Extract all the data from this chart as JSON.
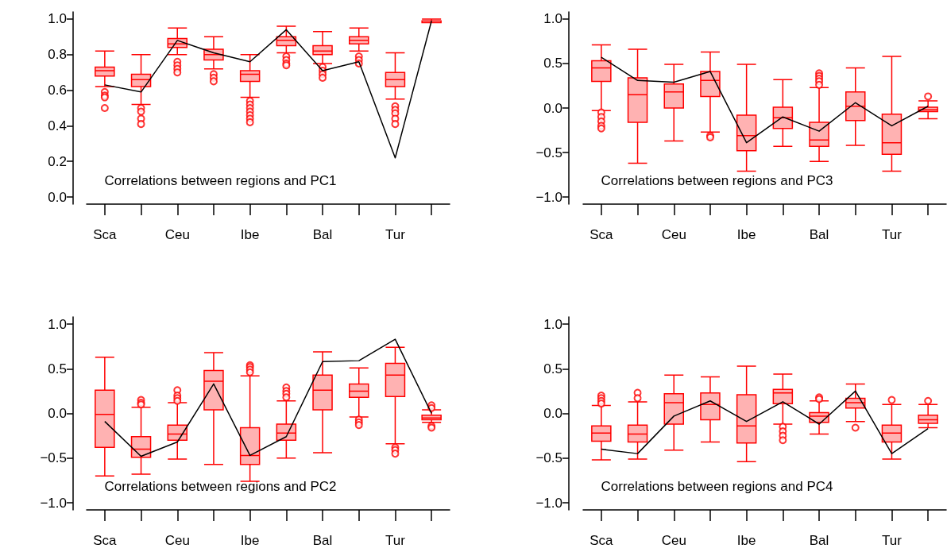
{
  "chart_data": [
    {
      "type": "box",
      "categories": [
        "Sca",
        null,
        "Ceu",
        null,
        "Ibe",
        null,
        "Bal",
        null,
        "Tur",
        null
      ],
      "ylim": [
        -0.04,
        1.04
      ],
      "yticks": [
        {
          "value": 0,
          "label": "0.0"
        },
        0.2,
        0.4,
        0.6,
        0.8,
        {
          "value": 1,
          "label": "1.0"
        }
      ],
      "annotations": [
        "Correlations between regions and PC1"
      ],
      "series": [
        {
          "type": "box",
          "color": "#ff0000",
          "boxes": [
            {
              "low": 0.62,
              "q1": 0.68,
              "median": 0.71,
              "q3": 0.73,
              "high": 0.82,
              "outliers": [
                0.59,
                0.57,
                0.56,
                0.5
              ]
            },
            {
              "low": 0.52,
              "q1": 0.62,
              "median": 0.66,
              "q3": 0.69,
              "high": 0.8,
              "outliers": [
                0.5,
                0.48,
                0.44,
                0.41
              ]
            },
            {
              "low": 0.8,
              "q1": 0.84,
              "median": 0.86,
              "q3": 0.89,
              "high": 0.95,
              "outliers": [
                0.76,
                0.74,
                0.72,
                0.7
              ]
            },
            {
              "low": 0.72,
              "q1": 0.77,
              "median": 0.8,
              "q3": 0.83,
              "high": 0.9,
              "outliers": [
                0.69,
                0.67,
                0.65
              ]
            },
            {
              "low": 0.56,
              "q1": 0.65,
              "median": 0.69,
              "q3": 0.71,
              "high": 0.8,
              "outliers": [
                0.54,
                0.52,
                0.5,
                0.48,
                0.46,
                0.44,
                0.42
              ]
            },
            {
              "low": 0.81,
              "q1": 0.85,
              "median": 0.88,
              "q3": 0.9,
              "high": 0.96,
              "outliers": [
                0.79,
                0.77,
                0.75,
                0.74
              ]
            },
            {
              "low": 0.75,
              "q1": 0.8,
              "median": 0.82,
              "q3": 0.85,
              "high": 0.93,
              "outliers": [
                0.73,
                0.71,
                0.69,
                0.67
              ]
            },
            {
              "low": 0.82,
              "q1": 0.86,
              "median": 0.88,
              "q3": 0.9,
              "high": 0.95,
              "outliers": [
                0.79,
                0.77,
                0.75
              ]
            },
            {
              "low": 0.55,
              "q1": 0.62,
              "median": 0.66,
              "q3": 0.7,
              "high": 0.81,
              "outliers": [
                0.51,
                0.49,
                0.47,
                0.44,
                0.41
              ]
            },
            {
              "low": 0.98,
              "q1": 0.98,
              "median": 0.99,
              "q3": 0.99,
              "high": 1.0
            }
          ]
        },
        {
          "type": "line",
          "color": "#000000",
          "values": [
            0.63,
            0.59,
            0.88,
            0.81,
            0.76,
            0.94,
            0.71,
            0.76,
            0.22,
            0.99
          ]
        }
      ]
    },
    {
      "type": "box",
      "categories": [
        "Sca",
        null,
        "Ceu",
        null,
        "Ibe",
        null,
        "Bal",
        null,
        "Tur",
        null
      ],
      "ylim": [
        -1.08,
        1.08
      ],
      "yticks": [
        {
          "value": -1,
          "label": "−1.0"
        },
        {
          "value": -0.5,
          "label": "−0.5"
        },
        {
          "value": 0,
          "label": "0.0"
        },
        0.5,
        {
          "value": 1,
          "label": "1.0"
        }
      ],
      "annotations": [
        "Correlations between regions and PC3"
      ],
      "series": [
        {
          "type": "box",
          "color": "#ff0000",
          "boxes": [
            {
              "low": -0.03,
              "q1": 0.3,
              "median": 0.45,
              "q3": 0.53,
              "high": 0.71,
              "outliers": [
                -0.05,
                -0.1,
                -0.15,
                -0.2,
                -0.23
              ]
            },
            {
              "low": -0.62,
              "q1": -0.16,
              "median": 0.15,
              "q3": 0.34,
              "high": 0.66
            },
            {
              "low": -0.37,
              "q1": 0.0,
              "median": 0.18,
              "q3": 0.27,
              "high": 0.49
            },
            {
              "low": -0.27,
              "q1": 0.13,
              "median": 0.31,
              "q3": 0.41,
              "high": 0.63,
              "outliers": [
                -0.31,
                -0.33
              ]
            },
            {
              "low": -0.71,
              "q1": -0.48,
              "median": -0.31,
              "q3": -0.08,
              "high": 0.49
            },
            {
              "low": -0.43,
              "q1": -0.23,
              "median": -0.11,
              "q3": 0.01,
              "high": 0.32
            },
            {
              "low": -0.6,
              "q1": -0.43,
              "median": -0.36,
              "q3": -0.16,
              "high": 0.23,
              "outliers": [
                0.39,
                0.36,
                0.33,
                0.3,
                0.26
              ]
            },
            {
              "low": -0.42,
              "q1": -0.14,
              "median": 0.02,
              "q3": 0.18,
              "high": 0.45
            },
            {
              "low": -0.71,
              "q1": -0.52,
              "median": -0.39,
              "q3": -0.07,
              "high": 0.58
            },
            {
              "low": -0.12,
              "q1": -0.04,
              "median": -0.02,
              "q3": 0.01,
              "high": 0.08,
              "outliers": [
                0.13
              ]
            }
          ]
        },
        {
          "type": "line",
          "color": "#000000",
          "values": [
            0.57,
            0.31,
            0.29,
            0.41,
            -0.39,
            -0.1,
            -0.26,
            0.06,
            -0.2,
            0.02
          ]
        }
      ]
    },
    {
      "type": "box",
      "categories": [
        "Sca",
        null,
        "Ceu",
        null,
        "Ibe",
        null,
        "Bal",
        null,
        "Tur",
        null
      ],
      "ylim": [
        -1.08,
        1.08
      ],
      "yticks": [
        {
          "value": -1,
          "label": "−1.0"
        },
        {
          "value": -0.5,
          "label": "−0.5"
        },
        {
          "value": 0,
          "label": "0.0"
        },
        0.5,
        {
          "value": 1,
          "label": "1.0"
        }
      ],
      "annotations": [
        "Correlations between regions and PC2"
      ],
      "series": [
        {
          "type": "box",
          "color": "#ff0000",
          "boxes": [
            {
              "low": -0.7,
              "q1": -0.38,
              "median": -0.01,
              "q3": 0.26,
              "high": 0.63
            },
            {
              "low": -0.68,
              "q1": -0.49,
              "median": -0.4,
              "q3": -0.26,
              "high": 0.07,
              "outliers": [
                0.15,
                0.12,
                0.1
              ]
            },
            {
              "low": -0.51,
              "q1": -0.3,
              "median": -0.23,
              "q3": -0.13,
              "high": 0.12,
              "outliers": [
                0.26,
                0.2,
                0.17,
                0.14
              ]
            },
            {
              "low": -0.57,
              "q1": 0.04,
              "median": 0.36,
              "q3": 0.48,
              "high": 0.68
            },
            {
              "low": -0.76,
              "q1": -0.57,
              "median": -0.47,
              "q3": -0.16,
              "high": 0.42,
              "outliers": [
                0.54,
                0.52,
                0.49,
                0.46
              ]
            },
            {
              "low": -0.5,
              "q1": -0.3,
              "median": -0.22,
              "q3": -0.12,
              "high": 0.14,
              "outliers": [
                0.29,
                0.25,
                0.22,
                0.18
              ]
            },
            {
              "low": -0.44,
              "q1": 0.04,
              "median": 0.26,
              "q3": 0.43,
              "high": 0.69
            },
            {
              "low": -0.04,
              "q1": 0.18,
              "median": 0.25,
              "q3": 0.33,
              "high": 0.51,
              "outliers": [
                -0.07,
                -0.1,
                -0.13
              ]
            },
            {
              "low": -0.34,
              "q1": 0.19,
              "median": 0.43,
              "q3": 0.56,
              "high": 0.74,
              "outliers": [
                -0.38,
                -0.41,
                -0.45
              ]
            },
            {
              "low": -0.1,
              "q1": -0.07,
              "median": -0.05,
              "q3": -0.02,
              "high": 0.04,
              "outliers": [
                0.09,
                0.06,
                -0.14,
                -0.16
              ]
            }
          ]
        },
        {
          "type": "line",
          "color": "#000000",
          "values": [
            -0.09,
            -0.48,
            -0.32,
            0.33,
            -0.47,
            -0.26,
            0.58,
            0.59,
            0.83,
            0.0
          ]
        }
      ]
    },
    {
      "type": "box",
      "categories": [
        "Sca",
        null,
        "Ceu",
        null,
        "Ibe",
        null,
        "Bal",
        null,
        "Tur",
        null
      ],
      "ylim": [
        -1.08,
        1.08
      ],
      "yticks": [
        {
          "value": -1,
          "label": "−1.0"
        },
        {
          "value": -0.5,
          "label": "−0.5"
        },
        {
          "value": 0,
          "label": "0.0"
        },
        0.5,
        {
          "value": 1,
          "label": "1.0"
        }
      ],
      "annotations": [
        "Correlations between regions and PC4"
      ],
      "series": [
        {
          "type": "box",
          "color": "#ff0000",
          "boxes": [
            {
              "low": -0.52,
              "q1": -0.31,
              "median": -0.22,
              "q3": -0.14,
              "high": 0.09,
              "outliers": [
                0.2,
                0.17,
                0.14,
                0.11
              ]
            },
            {
              "low": -0.51,
              "q1": -0.32,
              "median": -0.23,
              "q3": -0.13,
              "high": 0.13,
              "outliers": [
                0.23,
                0.17
              ]
            },
            {
              "low": -0.41,
              "q1": -0.12,
              "median": 0.12,
              "q3": 0.22,
              "high": 0.43
            },
            {
              "low": -0.32,
              "q1": -0.07,
              "median": 0.1,
              "q3": 0.23,
              "high": 0.41
            },
            {
              "low": -0.54,
              "q1": -0.33,
              "median": -0.14,
              "q3": 0.21,
              "high": 0.53
            },
            {
              "low": -0.12,
              "q1": 0.11,
              "median": 0.23,
              "q3": 0.27,
              "high": 0.44,
              "outliers": [
                -0.15,
                -0.2,
                -0.25,
                -0.3
              ]
            },
            {
              "low": -0.23,
              "q1": -0.1,
              "median": -0.03,
              "q3": 0.01,
              "high": 0.14,
              "outliers": [
                0.18,
                0.16
              ]
            },
            {
              "low": -0.09,
              "q1": 0.06,
              "median": 0.12,
              "q3": 0.17,
              "high": 0.33,
              "outliers": [
                -0.16
              ]
            },
            {
              "low": -0.51,
              "q1": -0.32,
              "median": -0.22,
              "q3": -0.13,
              "high": 0.1,
              "outliers": [
                0.15
              ]
            },
            {
              "low": -0.16,
              "q1": -0.11,
              "median": -0.07,
              "q3": -0.02,
              "high": 0.1,
              "outliers": [
                0.14
              ]
            }
          ]
        },
        {
          "type": "line",
          "color": "#000000",
          "values": [
            -0.4,
            -0.45,
            -0.03,
            0.14,
            -0.09,
            0.13,
            -0.12,
            0.25,
            -0.45,
            -0.17
          ]
        }
      ]
    }
  ]
}
